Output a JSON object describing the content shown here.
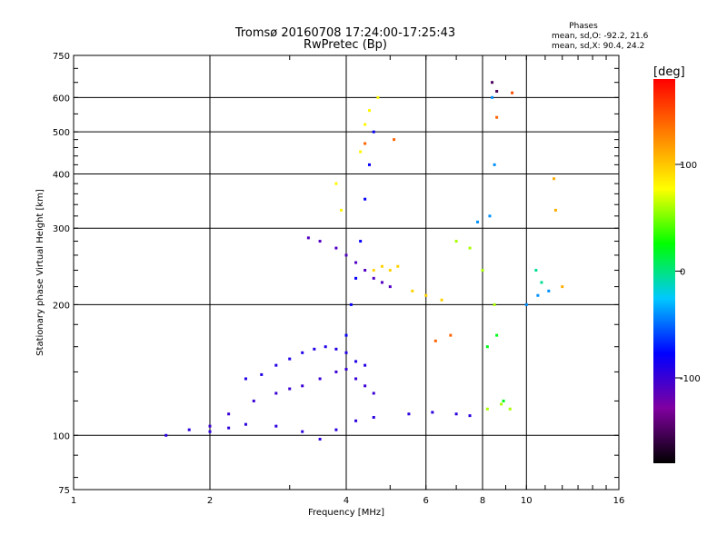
{
  "chart_data": {
    "type": "scatter",
    "title": "Tromsø 20160708 17:24:00-17:25:43",
    "subtitle": "RwPretec (Bp)",
    "xlabel": "Frequency [MHz]",
    "ylabel": "Stationary phase Virtual Height [km]",
    "x_scale": "log",
    "y_scale": "log",
    "xlim": [
      1,
      16
    ],
    "ylim": [
      75,
      750
    ],
    "x_ticks": [
      1,
      2,
      4,
      6,
      8,
      10,
      16
    ],
    "y_ticks": [
      75,
      100,
      200,
      300,
      400,
      500,
      600,
      750
    ],
    "grid": true,
    "phases_header": "Phases",
    "phases_lines": [
      "mean, sd,O: -92.2, 21.6",
      "mean, sd,X:  90.4, 24.2"
    ],
    "colorbar": {
      "label": "[deg]",
      "range": [
        -180,
        180
      ],
      "ticks": [
        100,
        0,
        -100
      ],
      "colors": [
        "#000000",
        "#8000a0",
        "#0000ff",
        "#00c8ff",
        "#00ff00",
        "#ffff00",
        "#ff8000",
        "#ff0000"
      ]
    },
    "series": [
      {
        "phase": -95,
        "points": [
          [
            1.6,
            100
          ],
          [
            1.8,
            103
          ],
          [
            2.0,
            102
          ],
          [
            2.2,
            104
          ],
          [
            2.4,
            106
          ],
          [
            2.8,
            105
          ],
          [
            3.2,
            102
          ],
          [
            3.5,
            98
          ],
          [
            3.8,
            103
          ],
          [
            4.2,
            108
          ],
          [
            4.6,
            110
          ],
          [
            5.5,
            112
          ],
          [
            6.2,
            113
          ],
          [
            7.0,
            112
          ],
          [
            7.5,
            111
          ]
        ]
      },
      {
        "phase": -100,
        "points": [
          [
            2.0,
            105
          ],
          [
            2.2,
            112
          ],
          [
            2.5,
            120
          ],
          [
            2.8,
            125
          ],
          [
            3.0,
            128
          ],
          [
            3.2,
            130
          ],
          [
            3.5,
            135
          ],
          [
            3.8,
            140
          ],
          [
            4.0,
            142
          ],
          [
            4.2,
            135
          ],
          [
            4.4,
            130
          ],
          [
            4.6,
            125
          ]
        ]
      },
      {
        "phase": -90,
        "points": [
          [
            2.4,
            135
          ],
          [
            2.6,
            138
          ],
          [
            2.8,
            145
          ],
          [
            3.0,
            150
          ],
          [
            3.2,
            155
          ],
          [
            3.4,
            158
          ],
          [
            3.6,
            160
          ],
          [
            3.8,
            158
          ],
          [
            4.0,
            155
          ],
          [
            4.2,
            148
          ],
          [
            4.4,
            145
          ]
        ]
      },
      {
        "phase": -110,
        "points": [
          [
            3.3,
            285
          ],
          [
            3.5,
            280
          ],
          [
            3.8,
            270
          ],
          [
            4.0,
            260
          ],
          [
            4.2,
            250
          ],
          [
            4.4,
            240
          ],
          [
            4.6,
            230
          ],
          [
            4.8,
            225
          ],
          [
            5.0,
            220
          ]
        ]
      },
      {
        "phase": -80,
        "points": [
          [
            4.0,
            170
          ],
          [
            4.1,
            200
          ],
          [
            4.2,
            230
          ],
          [
            4.3,
            280
          ],
          [
            4.4,
            350
          ],
          [
            4.5,
            420
          ],
          [
            4.6,
            500
          ]
        ]
      },
      {
        "phase": 95,
        "points": [
          [
            4.6,
            240
          ],
          [
            4.8,
            245
          ],
          [
            5.0,
            240
          ],
          [
            5.2,
            245
          ],
          [
            5.6,
            215
          ],
          [
            6.0,
            210
          ],
          [
            6.5,
            205
          ]
        ]
      },
      {
        "phase": 80,
        "points": [
          [
            4.3,
            450
          ],
          [
            4.4,
            520
          ],
          [
            4.5,
            560
          ],
          [
            4.7,
            600
          ],
          [
            3.8,
            380
          ],
          [
            3.9,
            330
          ]
        ]
      },
      {
        "phase": 140,
        "points": [
          [
            4.4,
            470
          ],
          [
            5.1,
            480
          ],
          [
            6.3,
            165
          ],
          [
            6.8,
            170
          ],
          [
            8.6,
            540
          ]
        ]
      },
      {
        "phase": 60,
        "points": [
          [
            7.0,
            280
          ],
          [
            7.5,
            270
          ],
          [
            8.0,
            240
          ],
          [
            8.5,
            200
          ],
          [
            8.2,
            115
          ],
          [
            8.8,
            118
          ],
          [
            9.2,
            115
          ]
        ]
      },
      {
        "phase": 20,
        "points": [
          [
            8.2,
            160
          ],
          [
            8.6,
            170
          ],
          [
            8.9,
            120
          ]
        ]
      },
      {
        "phase": -40,
        "points": [
          [
            7.8,
            310
          ],
          [
            8.3,
            320
          ],
          [
            8.5,
            420
          ],
          [
            8.4,
            600
          ],
          [
            10.0,
            200
          ],
          [
            10.6,
            210
          ],
          [
            11.2,
            215
          ]
        ]
      },
      {
        "phase": -5,
        "points": [
          [
            10.5,
            240
          ],
          [
            10.8,
            225
          ]
        ]
      },
      {
        "phase": -150,
        "points": [
          [
            8.4,
            650
          ],
          [
            8.6,
            620
          ]
        ]
      },
      {
        "phase": 150,
        "points": [
          [
            9.3,
            615
          ]
        ]
      },
      {
        "phase": 110,
        "points": [
          [
            11.5,
            390
          ],
          [
            11.6,
            330
          ],
          [
            12.0,
            220
          ]
        ]
      }
    ]
  }
}
